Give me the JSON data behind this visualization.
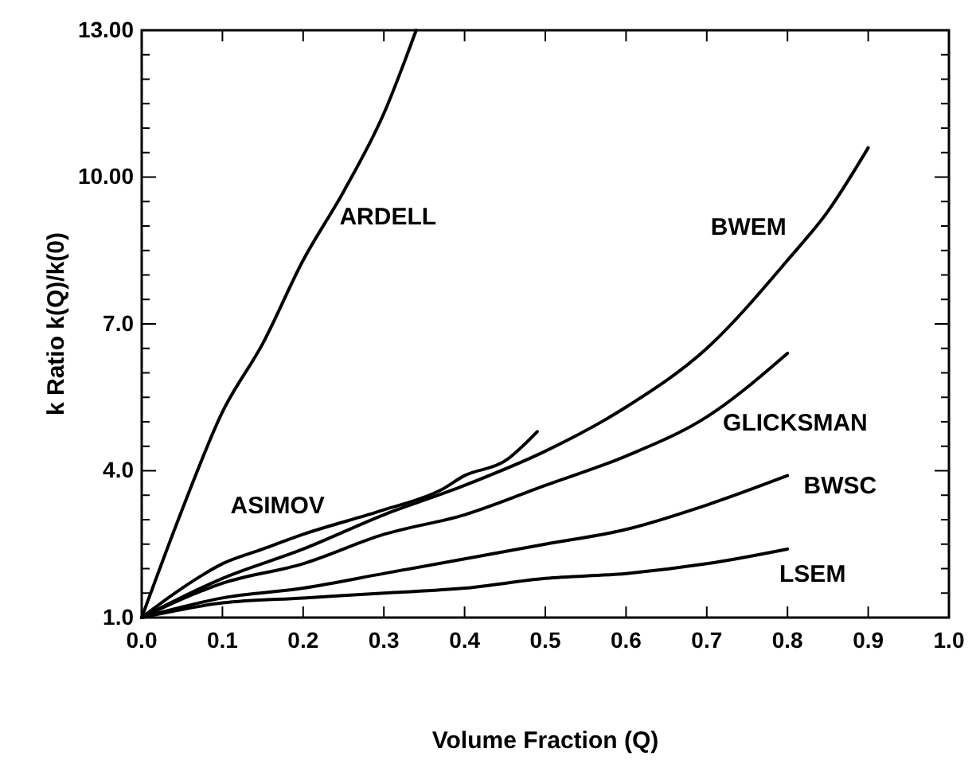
{
  "chart_data": {
    "type": "line",
    "xlabel": "Volume Fraction (Q)",
    "ylabel": "k Ratio k(Q)/k(0)",
    "xlim": [
      0,
      1
    ],
    "ylim": [
      1,
      13
    ],
    "xticks": [
      {
        "value": 0,
        "label": "0.0"
      },
      0.1,
      0.2,
      0.3,
      0.4,
      0.5,
      0.6,
      0.7,
      0.8,
      0.9,
      {
        "value": 1,
        "label": "1.0"
      }
    ],
    "yticks": [
      {
        "value": 1,
        "label": "1.0"
      },
      {
        "value": 1.5,
        "label": null
      },
      {
        "value": 2,
        "label": null
      },
      {
        "value": 2.5,
        "label": null
      },
      {
        "value": 3,
        "label": null
      },
      {
        "value": 3.5,
        "label": null
      },
      {
        "value": 4,
        "label": "4.0"
      },
      {
        "value": 4.5,
        "label": null
      },
      {
        "value": 5,
        "label": null
      },
      {
        "value": 5.5,
        "label": null
      },
      {
        "value": 6,
        "label": null
      },
      {
        "value": 6.5,
        "label": null
      },
      {
        "value": 7,
        "label": "7.0"
      },
      {
        "value": 7.5,
        "label": null
      },
      {
        "value": 8,
        "label": null
      },
      {
        "value": 8.5,
        "label": null
      },
      {
        "value": 9,
        "label": null
      },
      {
        "value": 9.5,
        "label": null
      },
      {
        "value": 10,
        "label": "10.00"
      },
      {
        "value": 10.5,
        "label": null
      },
      {
        "value": 11,
        "label": null
      },
      {
        "value": 11.5,
        "label": null
      },
      {
        "value": 12,
        "label": null
      },
      {
        "value": 12.5,
        "label": null
      },
      {
        "value": 13,
        "label": "13.00"
      }
    ],
    "grid": false,
    "legend": false,
    "marker": "none",
    "line_style": "solid",
    "series": [
      {
        "name": "ARDELL",
        "color": "#000000",
        "x": [
          0,
          0.05,
          0.1,
          0.15,
          0.2,
          0.25,
          0.3,
          0.34
        ],
        "values": [
          1,
          3.2,
          5.2,
          6.6,
          8.3,
          9.7,
          11.3,
          13
        ]
      },
      {
        "name": "BWEM",
        "color": "#000000",
        "x": [
          0,
          0.1,
          0.2,
          0.3,
          0.4,
          0.5,
          0.6,
          0.7,
          0.8,
          0.85,
          0.9
        ],
        "values": [
          1,
          1.8,
          2.4,
          3.1,
          3.7,
          4.4,
          5.3,
          6.5,
          8.3,
          9.3,
          10.6
        ]
      },
      {
        "name": "GLICKSMAN",
        "color": "#000000",
        "x": [
          0,
          0.1,
          0.2,
          0.3,
          0.4,
          0.5,
          0.6,
          0.7,
          0.8
        ],
        "values": [
          1,
          1.7,
          2.1,
          2.7,
          3.1,
          3.7,
          4.3,
          5.1,
          6.4
        ]
      },
      {
        "name": "ASIMOV",
        "color": "#000000",
        "x": [
          0,
          0.05,
          0.1,
          0.15,
          0.2,
          0.3,
          0.37,
          0.4,
          0.45,
          0.49
        ],
        "values": [
          1,
          1.6,
          2.1,
          2.4,
          2.7,
          3.2,
          3.6,
          3.9,
          4.2,
          4.8
        ]
      },
      {
        "name": "BWSC",
        "color": "#000000",
        "x": [
          0,
          0.1,
          0.2,
          0.3,
          0.4,
          0.5,
          0.6,
          0.7,
          0.8
        ],
        "values": [
          1,
          1.4,
          1.6,
          1.9,
          2.2,
          2.5,
          2.8,
          3.3,
          3.9
        ]
      },
      {
        "name": "LSEM",
        "color": "#000000",
        "x": [
          0,
          0.1,
          0.2,
          0.3,
          0.4,
          0.5,
          0.6,
          0.7,
          0.8
        ],
        "values": [
          1,
          1.3,
          1.4,
          1.5,
          1.6,
          1.8,
          1.9,
          2.1,
          2.4
        ]
      }
    ]
  }
}
